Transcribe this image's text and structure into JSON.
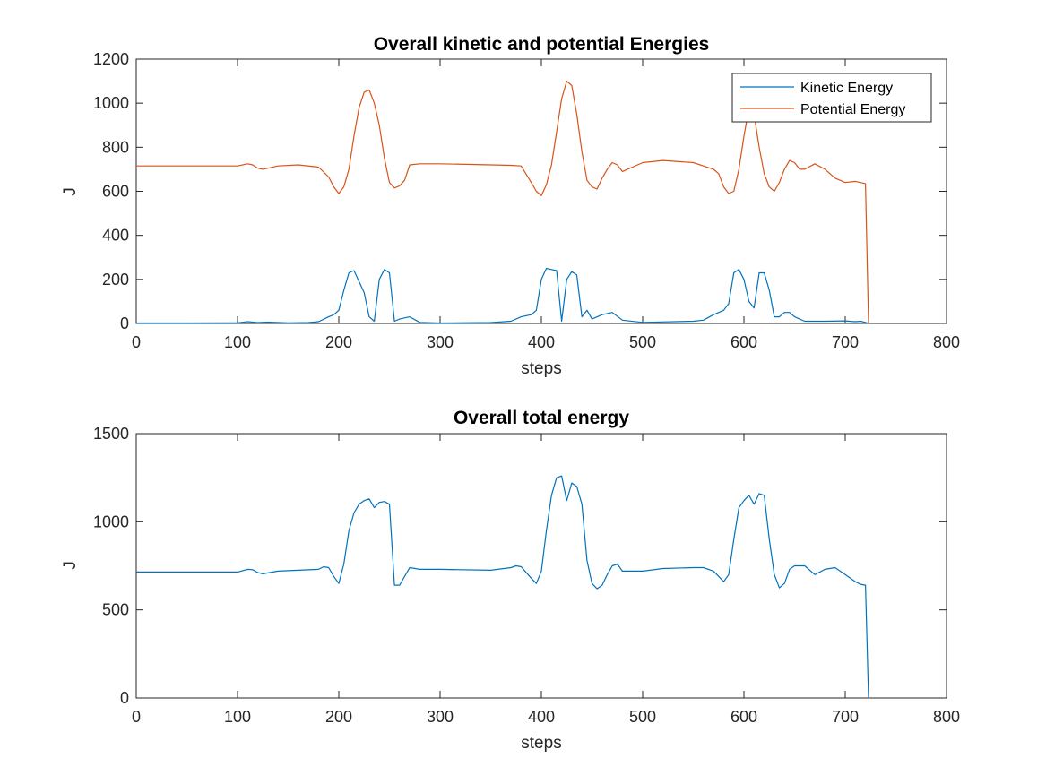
{
  "chart_data": [
    {
      "type": "line",
      "title": "Overall kinetic and potential Energies",
      "xlabel": "steps",
      "ylabel": "J",
      "xlim": [
        0,
        800
      ],
      "ylim": [
        0,
        1200
      ],
      "xticks": [
        "0",
        "100",
        "200",
        "300",
        "400",
        "500",
        "600",
        "700",
        "800"
      ],
      "yticks": [
        "0",
        "200",
        "400",
        "600",
        "800",
        "1000",
        "1200"
      ],
      "legend": "top-right",
      "grid": false,
      "series": [
        {
          "name": "Kinetic Energy",
          "color": "#0072BD",
          "x": [
            0,
            50,
            100,
            110,
            120,
            130,
            150,
            170,
            180,
            190,
            195,
            200,
            205,
            210,
            215,
            220,
            225,
            230,
            235,
            240,
            245,
            250,
            255,
            260,
            270,
            280,
            300,
            350,
            370,
            380,
            390,
            395,
            400,
            405,
            410,
            415,
            420,
            425,
            430,
            435,
            440,
            445,
            450,
            460,
            470,
            480,
            500,
            550,
            560,
            570,
            580,
            585,
            590,
            595,
            600,
            605,
            610,
            615,
            620,
            625,
            630,
            635,
            640,
            645,
            650,
            660,
            680,
            700,
            710,
            715,
            720,
            723
          ],
          "y": [
            2,
            2,
            3,
            8,
            4,
            6,
            3,
            4,
            8,
            30,
            40,
            60,
            150,
            230,
            240,
            190,
            140,
            30,
            10,
            200,
            245,
            230,
            10,
            20,
            30,
            5,
            2,
            4,
            10,
            30,
            40,
            60,
            200,
            250,
            245,
            240,
            10,
            200,
            235,
            220,
            30,
            60,
            20,
            40,
            50,
            15,
            5,
            10,
            15,
            40,
            60,
            90,
            230,
            245,
            200,
            100,
            70,
            230,
            230,
            150,
            30,
            30,
            50,
            50,
            30,
            10,
            10,
            12,
            8,
            10,
            5,
            0
          ]
        },
        {
          "name": "Potential Energy",
          "color": "#D95319",
          "x": [
            0,
            50,
            100,
            110,
            115,
            120,
            125,
            140,
            160,
            180,
            190,
            195,
            200,
            205,
            210,
            215,
            220,
            225,
            230,
            235,
            240,
            245,
            250,
            255,
            260,
            265,
            270,
            280,
            300,
            350,
            370,
            380,
            390,
            395,
            400,
            405,
            410,
            415,
            420,
            425,
            430,
            435,
            440,
            445,
            450,
            455,
            460,
            465,
            470,
            475,
            480,
            500,
            520,
            550,
            560,
            570,
            575,
            580,
            585,
            590,
            595,
            600,
            605,
            610,
            615,
            620,
            625,
            630,
            635,
            640,
            645,
            650,
            655,
            660,
            670,
            680,
            690,
            700,
            710,
            715,
            720,
            723
          ],
          "y": [
            715,
            715,
            715,
            725,
            720,
            705,
            700,
            715,
            720,
            710,
            665,
            620,
            590,
            620,
            700,
            850,
            980,
            1050,
            1060,
            1000,
            900,
            750,
            640,
            615,
            625,
            650,
            720,
            725,
            725,
            720,
            718,
            715,
            640,
            600,
            580,
            630,
            720,
            870,
            1020,
            1100,
            1080,
            950,
            780,
            650,
            620,
            610,
            660,
            700,
            730,
            720,
            690,
            730,
            740,
            730,
            715,
            700,
            680,
            620,
            590,
            600,
            700,
            850,
            980,
            950,
            800,
            680,
            620,
            600,
            640,
            700,
            740,
            730,
            700,
            700,
            725,
            700,
            660,
            640,
            645,
            640,
            635,
            0
          ]
        }
      ]
    },
    {
      "type": "line",
      "title": "Overall total energy",
      "xlabel": "steps",
      "ylabel": "J",
      "xlim": [
        0,
        800
      ],
      "ylim": [
        0,
        1500
      ],
      "xticks": [
        "0",
        "100",
        "200",
        "300",
        "400",
        "500",
        "600",
        "700",
        "800"
      ],
      "yticks": [
        "0",
        "500",
        "1000",
        "1500"
      ],
      "grid": false,
      "series": [
        {
          "color": "#0072BD",
          "x": [
            0,
            50,
            100,
            110,
            115,
            120,
            125,
            140,
            160,
            180,
            185,
            190,
            195,
            200,
            205,
            210,
            215,
            220,
            225,
            230,
            235,
            240,
            245,
            250,
            255,
            260,
            270,
            280,
            300,
            350,
            370,
            375,
            380,
            390,
            395,
            400,
            405,
            410,
            415,
            420,
            425,
            430,
            435,
            440,
            445,
            450,
            455,
            460,
            465,
            470,
            475,
            480,
            500,
            520,
            550,
            560,
            570,
            575,
            580,
            585,
            590,
            595,
            600,
            605,
            610,
            615,
            620,
            625,
            630,
            635,
            640,
            645,
            650,
            660,
            670,
            680,
            690,
            700,
            710,
            715,
            720,
            723
          ],
          "y": [
            715,
            715,
            715,
            730,
            728,
            712,
            705,
            720,
            725,
            730,
            745,
            740,
            690,
            650,
            760,
            950,
            1050,
            1100,
            1120,
            1130,
            1080,
            1110,
            1115,
            1100,
            640,
            640,
            740,
            730,
            730,
            725,
            740,
            750,
            745,
            680,
            650,
            720,
            950,
            1150,
            1250,
            1260,
            1120,
            1220,
            1200,
            1100,
            780,
            650,
            620,
            640,
            700,
            750,
            760,
            720,
            720,
            735,
            740,
            740,
            720,
            690,
            660,
            700,
            900,
            1080,
            1120,
            1150,
            1100,
            1160,
            1150,
            900,
            700,
            625,
            650,
            730,
            750,
            750,
            700,
            730,
            740,
            700,
            660,
            645,
            640,
            0
          ]
        }
      ]
    }
  ]
}
